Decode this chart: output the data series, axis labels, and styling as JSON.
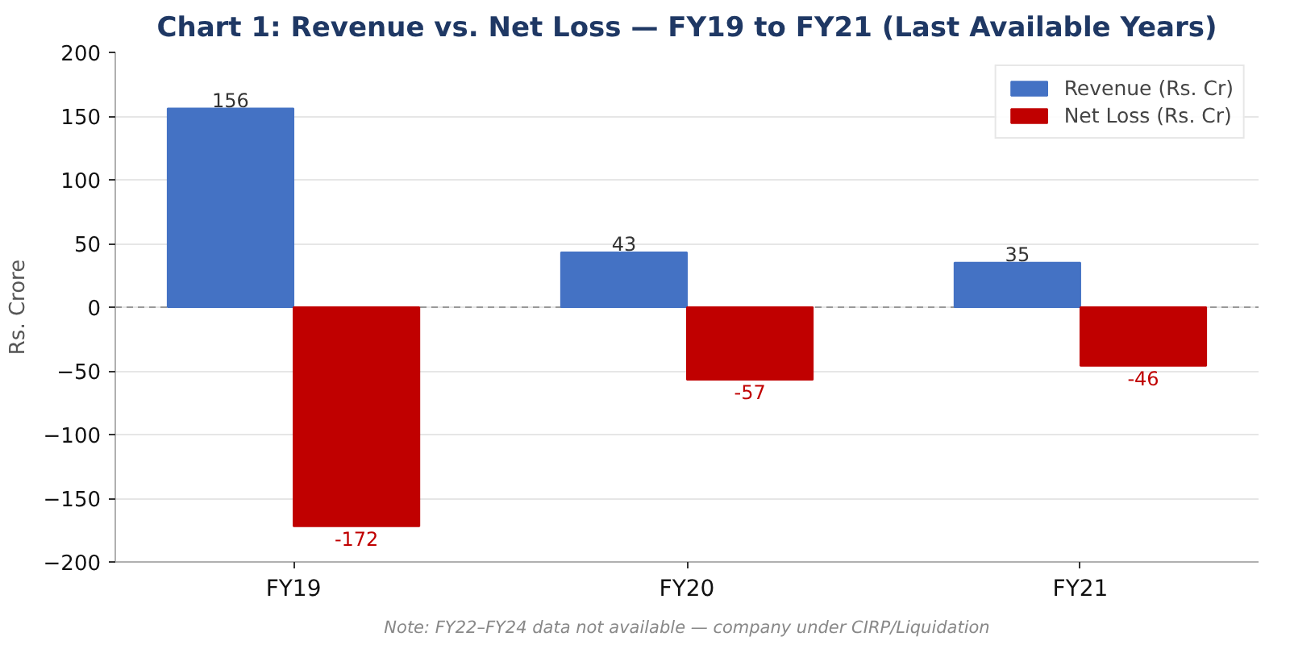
{
  "chart_data": {
    "type": "bar",
    "title": "Chart 1: Revenue vs. Net Loss — FY19 to FY21 (Last Available Years)",
    "ylabel": "Rs. Crore",
    "categories": [
      "FY19",
      "FY20",
      "FY21"
    ],
    "series": [
      {
        "name": "Revenue (Rs. Cr)",
        "color": "#4472c4",
        "values": [
          156,
          43,
          35
        ]
      },
      {
        "name": "Net Loss (Rs. Cr)",
        "color": "#c00000",
        "values": [
          -172,
          -57,
          -46
        ]
      }
    ],
    "ylim": [
      -200,
      200
    ],
    "yticks": [
      {
        "value": -200,
        "label": "−200"
      },
      {
        "value": -150,
        "label": "−150"
      },
      {
        "value": -100,
        "label": "−100"
      },
      {
        "value": -50,
        "label": "−50"
      },
      0,
      50,
      100,
      150,
      200
    ],
    "grid": "y",
    "legend": "top right",
    "data_labels": true,
    "ref_lines": [
      {
        "axis": "y",
        "value": 0,
        "color": "#999999",
        "line_style": "dashed"
      }
    ],
    "annotations": [
      "Note: FY22–FY24 data not available — company under CIRP/Liquidation"
    ]
  }
}
